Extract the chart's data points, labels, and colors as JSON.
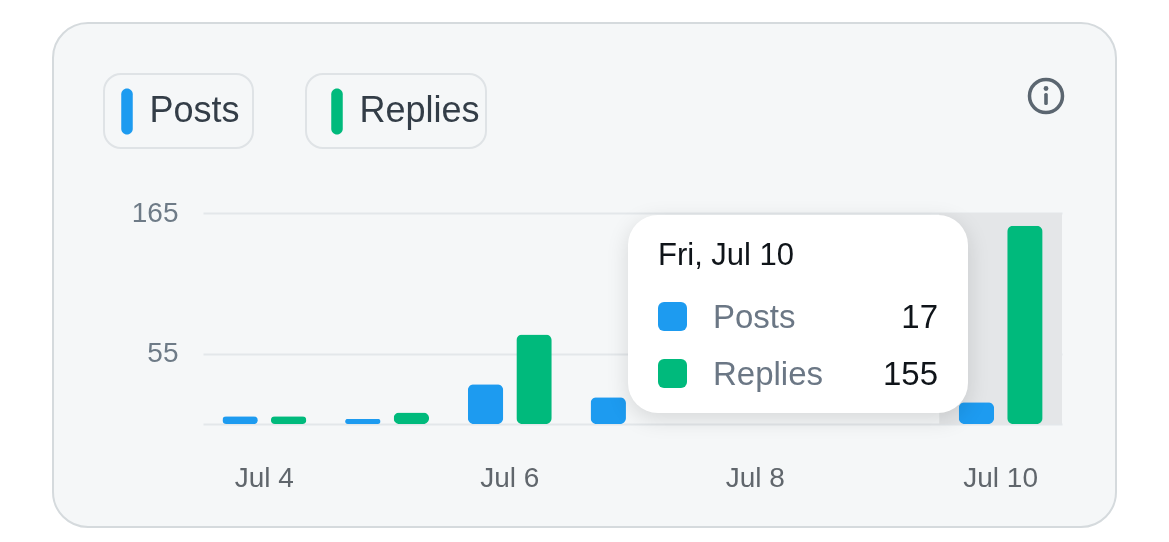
{
  "chart_data": {
    "type": "bar",
    "categories": [
      "Jul 4",
      null,
      "Jul 6",
      null,
      "Jul 8",
      null,
      "Jul 10"
    ],
    "series": [
      {
        "name": "Posts",
        "color": "#1d9bf0",
        "values": [
          6,
          4,
          31,
          21,
          null,
          null,
          17
        ]
      },
      {
        "name": "Replies",
        "color": "#00ba7c",
        "values": [
          6,
          9,
          70,
          null,
          null,
          null,
          155
        ]
      }
    ],
    "ylim": [
      0,
      165
    ],
    "yticks": [
      {
        "value": 0,
        "label": null
      },
      55,
      165
    ],
    "grid": "y",
    "legend": "top left",
    "bands": [
      {
        "axis": "x",
        "from": "Jul 10",
        "to": "Jul 10",
        "color": "#e4e6e8"
      }
    ],
    "annotations": [
      "Fri, Jul 10",
      "Posts",
      "17",
      "Replies",
      "155"
    ]
  }
}
